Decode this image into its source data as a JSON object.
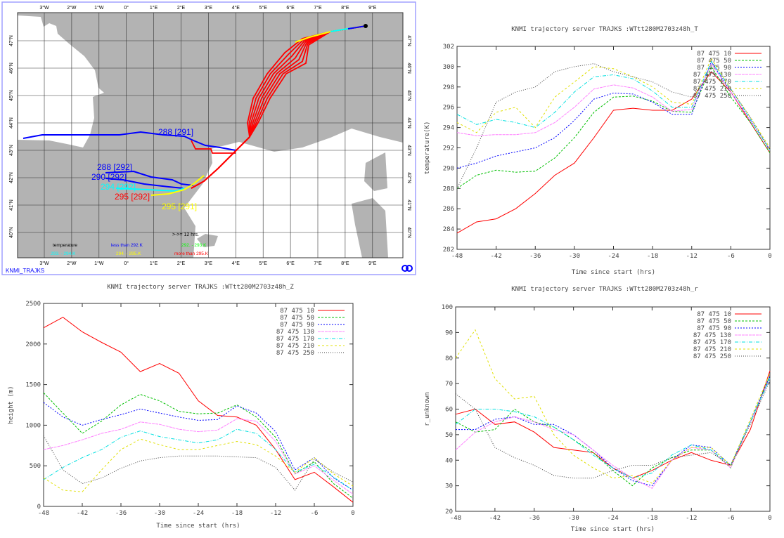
{
  "map": {
    "footer_label": "KNMI_TRAJKS",
    "lon_labels": [
      "3°W",
      "2°W",
      "1°W",
      "0°",
      "1°E",
      "2°E",
      "3°E",
      "4°E",
      "5°E",
      "6°E",
      "7°E",
      "8°E",
      "9°E"
    ],
    "lat_labels": [
      "47°N",
      "46°N",
      "45°N",
      "44°N",
      "43°N",
      "42°N",
      "41°N",
      "40°N"
    ],
    "trajectory_labels": [
      {
        "text": "288 [291]",
        "color": "#0000ff"
      },
      {
        "text": "288 [292]",
        "color": "#0000ff"
      },
      {
        "text": "290 [292]",
        "color": "#0000ff"
      },
      {
        "text": "294 [292]",
        "color": "#00ffff"
      },
      {
        "text": "295 [292]",
        "color": "#ff0000"
      },
      {
        "text": "295 [291]",
        "color": "#ffff00"
      }
    ],
    "marker_note": ">->= 12 hrs.",
    "legend": {
      "title": "temperature",
      "items": [
        {
          "text": "less than  292.K",
          "color": "#0000ff"
        },
        {
          "text": "292. -   293.K",
          "color": "#00ff00"
        },
        {
          "text": "293. -   294.K",
          "color": "#00ffff"
        },
        {
          "text": "294. -   295.K",
          "color": "#ffff00"
        },
        {
          "text": "more than  295.K",
          "color": "#ff0000"
        }
      ]
    },
    "land_color": "#b3b3b3",
    "sea_color": "#ffffff"
  },
  "series_names": [
    "87 475 10",
    "87 475 50",
    "87 475 90",
    "87 475 130",
    "87 475 170",
    "87 475 210",
    "87 475 250"
  ],
  "series_colors": [
    "#ff0000",
    "#00c000",
    "#0000ff",
    "#ff80ff",
    "#00e0e0",
    "#e0e000",
    "#404040"
  ],
  "chart_data": [
    {
      "type": "line",
      "title": "KNMI trajectory server TRAJKS :WTtt280M2703z48h_T",
      "xlabel": "Time since start (hrs)",
      "ylabel": "temperature(K)",
      "xlim": [
        -48,
        0
      ],
      "ylim": [
        282,
        302
      ],
      "xticks": [
        -48,
        -42,
        -36,
        -30,
        -24,
        -18,
        -12,
        -6,
        0
      ],
      "yticks": [
        282,
        284,
        286,
        288,
        290,
        292,
        294,
        296,
        298,
        300,
        302
      ],
      "legend": "top-right",
      "x": [
        -48,
        -45,
        -42,
        -39,
        -36,
        -33,
        -30,
        -27,
        -24,
        -21,
        -18,
        -15,
        -12,
        -9,
        -6,
        -3,
        0
      ],
      "series": [
        {
          "name": "87 475 10",
          "values": [
            283.6,
            284.7,
            285.0,
            286.0,
            287.5,
            289.3,
            290.5,
            293.0,
            295.7,
            295.9,
            295.7,
            295.7,
            296.8,
            299.5,
            297.5,
            294.5,
            291.5
          ]
        },
        {
          "name": "87 475 50",
          "values": [
            288.0,
            289.3,
            289.8,
            289.6,
            289.7,
            291.0,
            293.0,
            295.5,
            297.0,
            297.1,
            296.6,
            295.6,
            295.5,
            300.0,
            297.0,
            294.5,
            291.5
          ]
        },
        {
          "name": "87 475 90",
          "values": [
            290.0,
            290.5,
            291.2,
            291.6,
            292.0,
            293.0,
            294.7,
            296.8,
            297.4,
            297.3,
            296.5,
            295.3,
            295.3,
            300.5,
            297.5,
            294.7,
            291.8
          ]
        },
        {
          "name": "87 475 130",
          "values": [
            293.5,
            293.2,
            293.3,
            293.3,
            293.5,
            294.5,
            296.0,
            297.8,
            298.2,
            297.9,
            297.0,
            295.6,
            295.8,
            300.3,
            297.5,
            294.7,
            291.8
          ]
        },
        {
          "name": "87 475 170",
          "values": [
            295.3,
            294.3,
            294.8,
            294.5,
            294.0,
            295.5,
            297.5,
            299.0,
            299.2,
            298.8,
            297.6,
            296.0,
            296.0,
            300.5,
            297.8,
            294.8,
            291.8
          ]
        },
        {
          "name": "87 475 210",
          "values": [
            294.5,
            293.5,
            295.5,
            296.0,
            294.0,
            297.0,
            298.5,
            300.0,
            299.8,
            299.0,
            298.0,
            296.5,
            296.3,
            300.8,
            297.8,
            295.0,
            292.0
          ]
        },
        {
          "name": "87 475 250",
          "values": [
            288.0,
            292.0,
            296.5,
            297.5,
            298.0,
            299.5,
            300.0,
            300.3,
            299.5,
            299.0,
            298.5,
            297.5,
            297.0,
            299.5,
            297.8,
            295.0,
            291.8
          ]
        }
      ]
    },
    {
      "type": "line",
      "title": "KNMI trajectory server TRAJKS :WTtt280M2703z48h_Z",
      "xlabel": "Time since start (hrs)",
      "ylabel": "height (m)",
      "xlim": [
        -48,
        0
      ],
      "ylim": [
        0,
        2500
      ],
      "xticks": [
        -48,
        -42,
        -36,
        -30,
        -24,
        -18,
        -12,
        -6,
        0
      ],
      "yticks": [
        0,
        500,
        1000,
        1500,
        2000,
        2500
      ],
      "legend": "top-right",
      "x": [
        -48,
        -45,
        -42,
        -39,
        -36,
        -33,
        -30,
        -27,
        -24,
        -21,
        -18,
        -15,
        -12,
        -9,
        -6,
        -3,
        0
      ],
      "series": [
        {
          "name": "87 475 10",
          "values": [
            2200,
            2330,
            2150,
            2020,
            1900,
            1660,
            1760,
            1640,
            1300,
            1120,
            1100,
            1000,
            700,
            330,
            420,
            240,
            50
          ]
        },
        {
          "name": "87 475 50",
          "values": [
            1400,
            1150,
            900,
            1050,
            1250,
            1380,
            1300,
            1170,
            1140,
            1150,
            1250,
            1100,
            850,
            400,
            550,
            280,
            100
          ]
        },
        {
          "name": "87 475 90",
          "values": [
            1280,
            1100,
            1000,
            1070,
            1130,
            1200,
            1150,
            1100,
            1060,
            1070,
            1240,
            1150,
            920,
            450,
            600,
            350,
            200
          ]
        },
        {
          "name": "87 475 130",
          "values": [
            700,
            750,
            820,
            900,
            950,
            1040,
            1010,
            950,
            920,
            940,
            1080,
            1050,
            800,
            400,
            500,
            320,
            150
          ]
        },
        {
          "name": "87 475 170",
          "values": [
            330,
            480,
            600,
            700,
            850,
            930,
            860,
            820,
            780,
            820,
            950,
            900,
            700,
            420,
            520,
            360,
            200
          ]
        },
        {
          "name": "87 475 210",
          "values": [
            350,
            200,
            180,
            450,
            700,
            830,
            760,
            700,
            700,
            750,
            800,
            760,
            620,
            420,
            600,
            400,
            250
          ]
        },
        {
          "name": "87 475 250",
          "values": [
            870,
            450,
            280,
            350,
            470,
            560,
            600,
            620,
            620,
            620,
            610,
            600,
            480,
            200,
            580,
            420,
            300
          ]
        }
      ]
    },
    {
      "type": "line",
      "title": "KNMI trajectory server TRAJKS :WTtt280M2703z48h_r",
      "xlabel": "Time since start (hrs)",
      "ylabel": "r_unknown",
      "xlim": [
        -48,
        0
      ],
      "ylim": [
        20,
        100
      ],
      "xticks": [
        -48,
        -42,
        -36,
        -30,
        -24,
        -18,
        -12,
        -6,
        0
      ],
      "yticks": [
        20,
        30,
        40,
        50,
        60,
        70,
        80,
        90,
        100
      ],
      "legend": "top-right",
      "x": [
        -48,
        -45,
        -42,
        -39,
        -36,
        -33,
        -30,
        -27,
        -24,
        -21,
        -18,
        -15,
        -12,
        -9,
        -6,
        -3,
        0
      ],
      "series": [
        {
          "name": "87 475 10",
          "values": [
            58,
            60,
            54,
            55,
            51,
            45,
            44,
            43,
            37,
            33,
            36,
            40,
            43,
            40,
            38,
            52,
            75
          ]
        },
        {
          "name": "87 475 50",
          "values": [
            55,
            51,
            52,
            60,
            55,
            53,
            48,
            43,
            36,
            30,
            37,
            41,
            44,
            44,
            37,
            55,
            73
          ]
        },
        {
          "name": "87 475 90",
          "values": [
            52,
            52,
            56,
            57,
            54,
            54,
            50,
            44,
            37,
            32,
            30,
            40,
            46,
            45,
            38,
            55,
            73
          ]
        },
        {
          "name": "87 475 130",
          "values": [
            44,
            51,
            55,
            57,
            55,
            52,
            50,
            44,
            38,
            33,
            29,
            40,
            45,
            44,
            37,
            55,
            72
          ]
        },
        {
          "name": "87 475 170",
          "values": [
            54,
            60,
            60,
            59,
            57,
            53,
            48,
            42,
            37,
            33,
            35,
            42,
            46,
            44,
            38,
            55,
            72
          ]
        },
        {
          "name": "87 475 210",
          "values": [
            80,
            91,
            72,
            64,
            65,
            50,
            42,
            37,
            33,
            34,
            31,
            40,
            45,
            45,
            38,
            56,
            74
          ]
        },
        {
          "name": "87 475 250",
          "values": [
            66,
            60,
            45,
            41,
            38,
            34,
            33,
            33,
            36,
            38,
            38,
            41,
            42,
            43,
            38,
            54,
            71
          ]
        }
      ]
    }
  ]
}
